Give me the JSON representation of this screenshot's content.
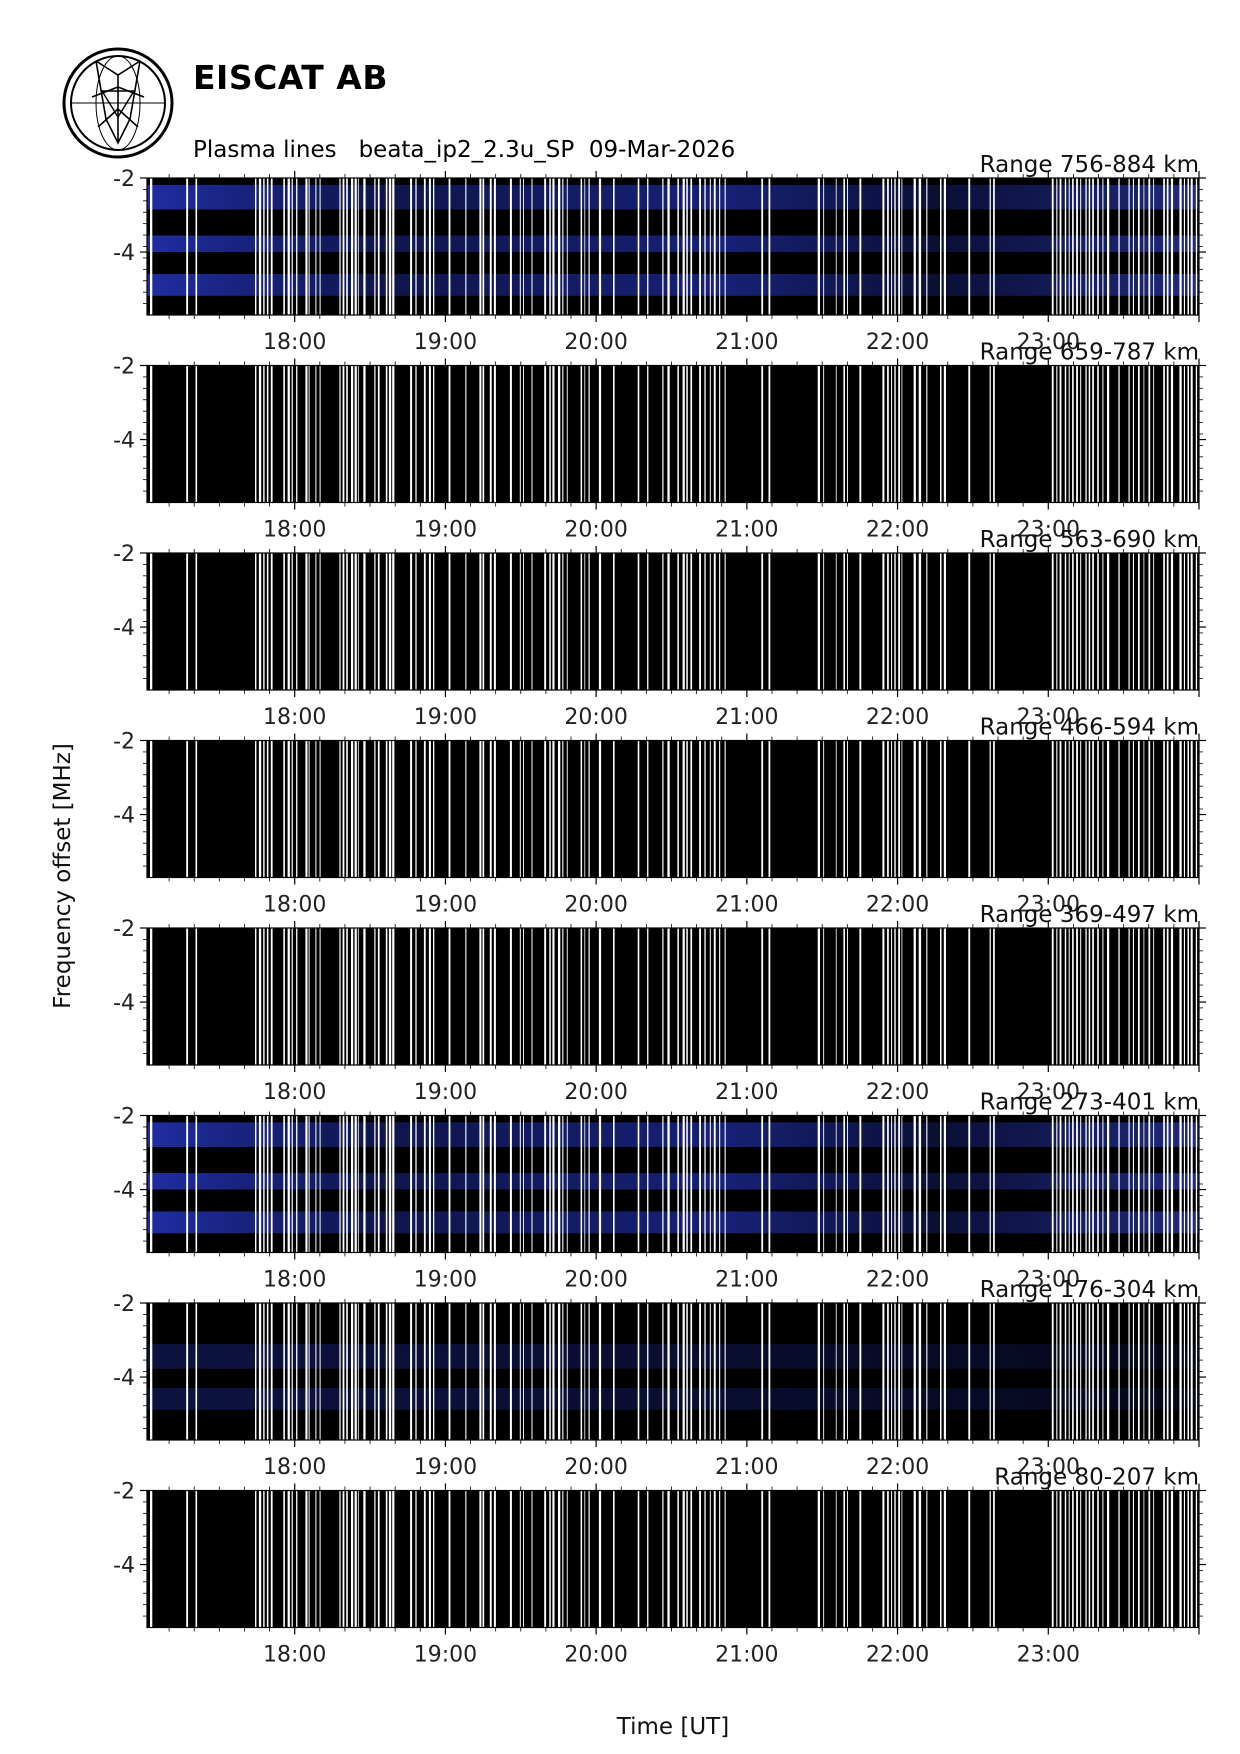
{
  "header": {
    "organization": "EISCAT AB",
    "subtitle": "Plasma lines   beata_ip2_2.3u_SP  09-Mar-2026"
  },
  "chart_data": {
    "type": "heatmap",
    "panel_count": 8,
    "xlabel": "Time [UT]",
    "ylabel": "Frequency offset [MHz]",
    "x_ticks": [
      "18:00",
      "19:00",
      "20:00",
      "21:00",
      "22:00",
      "23:00"
    ],
    "x_tick_hours": [
      18,
      19,
      20,
      21,
      22,
      23
    ],
    "xlim_hours": [
      17.02,
      24.0
    ],
    "y_ticks": [
      -2,
      -4
    ],
    "ylim": [
      -5.7,
      -2
    ],
    "colors": {
      "background": "#000000",
      "gap": "#ffffff",
      "signal": "#2a3cd6"
    },
    "panels": [
      {
        "label": "Range 756-884 km",
        "signal": "strong"
      },
      {
        "label": "Range 659-787 km",
        "signal": "weak"
      },
      {
        "label": "Range 563-690 km",
        "signal": "weak"
      },
      {
        "label": "Range 466-594 km",
        "signal": "none"
      },
      {
        "label": "Range 369-497 km",
        "signal": "weak"
      },
      {
        "label": "Range 273-401 km",
        "signal": "strong"
      },
      {
        "label": "Range 176-304 km",
        "signal": "medium"
      },
      {
        "label": "Range 80-207 km",
        "signal": "none"
      }
    ]
  }
}
